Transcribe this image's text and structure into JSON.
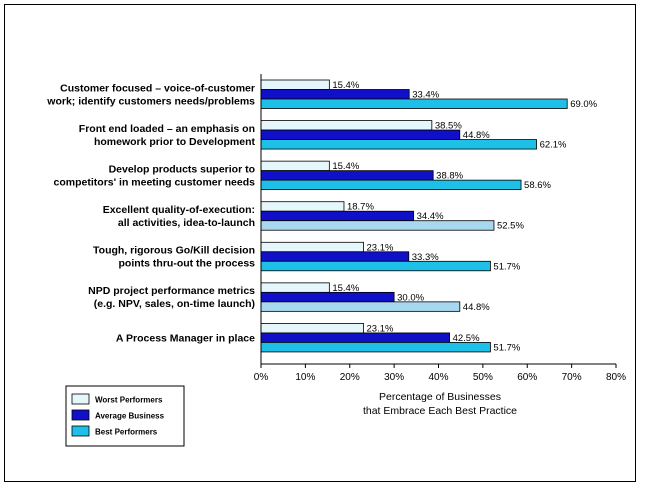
{
  "chart_data": {
    "type": "bar",
    "orientation": "horizontal",
    "categories": [
      [
        "Customer focused – voice-of-customer",
        "work; identify customers needs/problems"
      ],
      [
        "Front end loaded – an emphasis on",
        "homework prior to Development"
      ],
      [
        "Develop products superior to",
        "competitors' in meeting customer needs"
      ],
      [
        "Excellent quality-of-execution:",
        "all activities, idea-to-launch"
      ],
      [
        "Tough, rigorous Go/Kill decision",
        "points thru-out the process"
      ],
      [
        "NPD project performance metrics",
        "(e.g. NPV, sales, on-time launch)"
      ],
      [
        "A Process Manager in place"
      ]
    ],
    "series": [
      {
        "name": "Worst Performers",
        "color": "#e6f7fb",
        "values": [
          15.4,
          38.5,
          15.4,
          18.7,
          23.1,
          15.4,
          23.1
        ],
        "labels": [
          "15.4%",
          "38.5%",
          "15.4%",
          "18.7%",
          "23.1%",
          "15.4%",
          "23.1%"
        ]
      },
      {
        "name": "Average Business",
        "color": "#1010c8",
        "values": [
          33.4,
          44.8,
          38.8,
          34.4,
          33.3,
          30.0,
          42.5
        ],
        "labels": [
          "33.4%",
          "44.8%",
          "38.8%",
          "34.4%",
          "33.3%",
          "30.0%",
          "42.5%"
        ]
      },
      {
        "name": "Best Performers",
        "color": "#1ec0e8",
        "alt_color": "#a8d8f0",
        "values": [
          69.0,
          62.1,
          58.6,
          52.5,
          51.7,
          44.8,
          51.7
        ],
        "labels": [
          "69.0%",
          "62.1%",
          "58.6%",
          "52.5%",
          "51.7%",
          "44.8%",
          "51.7%"
        ]
      }
    ],
    "xlim": [
      0,
      80
    ],
    "xticks": [
      0,
      10,
      20,
      30,
      40,
      50,
      60,
      70,
      80
    ],
    "xtick_labels": [
      "0%",
      "10%",
      "20%",
      "30%",
      "40%",
      "50%",
      "60%",
      "70%",
      "80%"
    ],
    "xlabel": [
      "Percentage of Businesses",
      "that Embrace Each Best Practice"
    ],
    "legend_position": "bottom-left",
    "grid": false
  }
}
